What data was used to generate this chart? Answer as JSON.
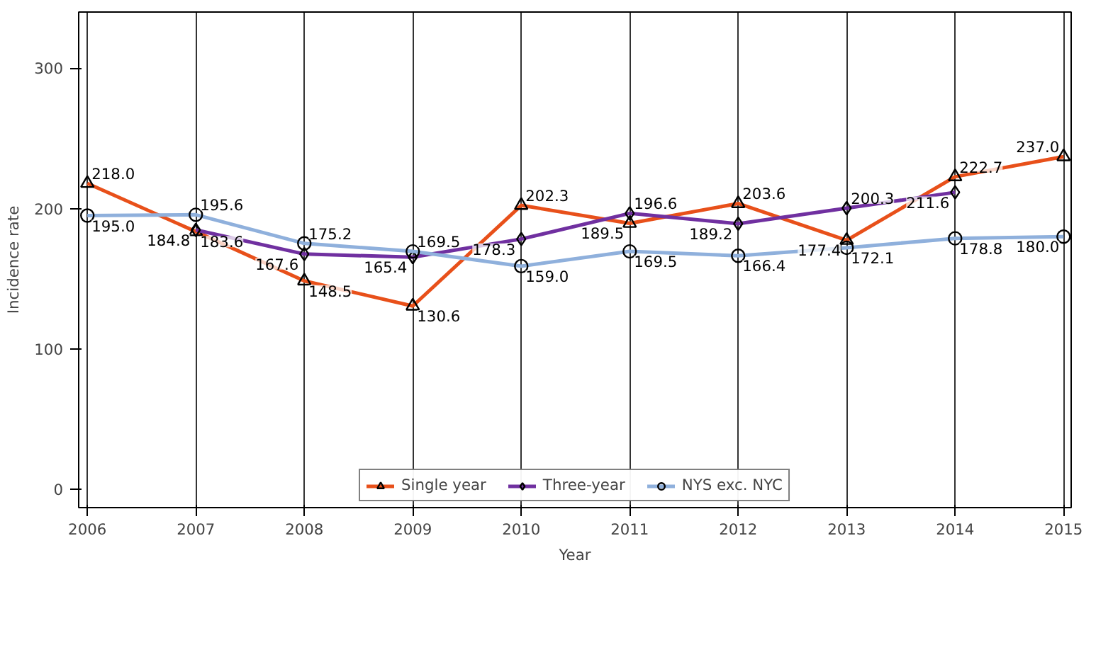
{
  "chart_data": {
    "type": "line",
    "xlabel": "Year",
    "ylabel": "Incidence rate",
    "x": [
      2006,
      2007,
      2008,
      2009,
      2010,
      2011,
      2012,
      2013,
      2014,
      2015
    ],
    "xlim": [
      2005.92,
      2015.07
    ],
    "xticks": [
      2006,
      2007,
      2008,
      2009,
      2010,
      2011,
      2012,
      2013,
      2014,
      2015
    ],
    "ylim": [
      -13,
      340
    ],
    "yticks": [
      0,
      100,
      200,
      300
    ],
    "grid": "x",
    "legend": "bottom",
    "series": [
      {
        "name": "Single year",
        "color": "#e8501a",
        "marker": "triangle",
        "values": [
          218.0,
          183.6,
          148.5,
          130.6,
          202.3,
          189.5,
          203.6,
          177.4,
          222.7,
          237.0
        ],
        "value_labels": [
          "218.0",
          "183.6",
          "148.5",
          "130.6",
          "202.3",
          "189.5",
          "203.6",
          "177.4",
          "222.7",
          "237.0"
        ]
      },
      {
        "name": "Three-year",
        "color": "#7030a0",
        "marker": "diamond",
        "values": [
          null,
          184.8,
          167.6,
          165.4,
          178.3,
          196.6,
          189.2,
          200.3,
          211.6,
          null
        ],
        "value_labels": [
          null,
          "184.8",
          "167.6",
          "165.4",
          "178.3",
          "196.6",
          "189.2",
          "200.3",
          "211.6",
          null
        ]
      },
      {
        "name": "NYS exc. NYC",
        "color": "#8fb0dc",
        "marker": "circle",
        "values": [
          195.0,
          195.6,
          175.2,
          169.5,
          159.0,
          169.5,
          166.4,
          172.1,
          178.8,
          180.0
        ],
        "value_labels": [
          "195.0",
          "195.6",
          "175.2",
          "169.5",
          "159.0",
          "169.5",
          "166.4",
          "172.1",
          "178.8",
          "180.0"
        ]
      }
    ]
  }
}
